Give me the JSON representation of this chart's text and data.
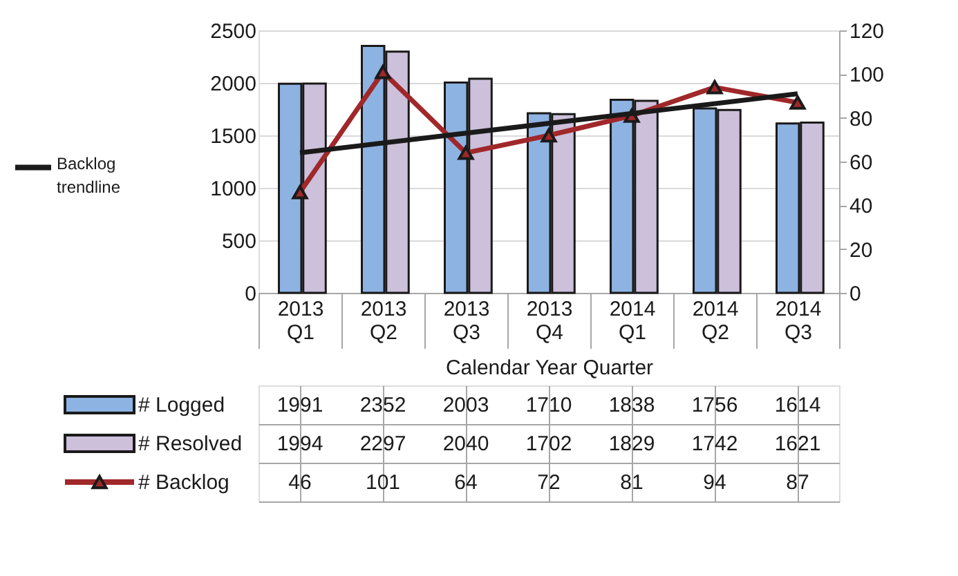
{
  "chart_data": {
    "type": "bar",
    "xlabel": "Calendar Year Quarter",
    "categories": [
      "2013 Q1",
      "2013 Q2",
      "2013 Q3",
      "2013 Q4",
      "2014 Q1",
      "2014 Q2",
      "2014 Q3"
    ],
    "series": [
      {
        "name": "# Logged",
        "color": "#8db3e2",
        "values": [
          1991,
          2352,
          2003,
          1710,
          1838,
          1756,
          1614
        ],
        "value_labels": [
          "1991",
          "2352",
          "2003",
          "1710",
          "1838",
          "1756",
          "1614"
        ]
      },
      {
        "name": "# Resolved",
        "color": "#ccc0da",
        "values": [
          1994,
          2297,
          2040,
          1702,
          1829,
          1742,
          1621
        ],
        "value_labels": [
          "1994",
          "2297",
          "2040",
          "1702",
          "1829",
          "1742",
          "1621"
        ]
      },
      {
        "name": "# Backlog",
        "type": "line",
        "axis": "y2",
        "color": "#a0282a",
        "marker": "triangle",
        "values": [
          46,
          101,
          64,
          72,
          81,
          94,
          87
        ],
        "value_labels": [
          "46",
          "101",
          "64",
          "72",
          "81",
          "94",
          "87"
        ]
      },
      {
        "name": "Backlog trendline",
        "type": "line",
        "axis": "y2",
        "color": "#1a1a1a",
        "marker": "none",
        "x": [
          "2013 Q1",
          "2014 Q3"
        ],
        "values": [
          64,
          91
        ]
      }
    ],
    "ylim": [
      0,
      2500
    ],
    "yticks": [
      0,
      500,
      1000,
      1500,
      2000,
      2500
    ],
    "y2lim": [
      0,
      120
    ],
    "y2ticks": [
      0,
      20,
      40,
      60,
      80,
      100,
      120
    ],
    "grid": "y",
    "legend": "bottom"
  }
}
